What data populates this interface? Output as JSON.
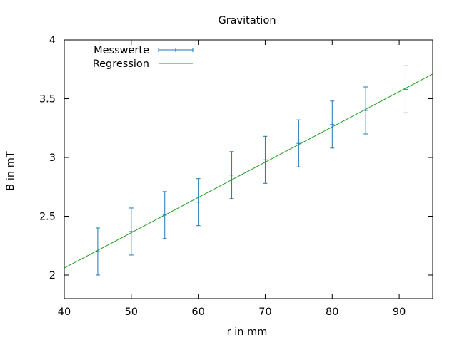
{
  "chart_data": {
    "type": "scatter",
    "title": "Gravitation",
    "xlabel": "r in mm",
    "ylabel": "B in mT",
    "xlim": [
      40,
      95
    ],
    "ylim": [
      1.8,
      4.0
    ],
    "x_ticks": [
      40,
      50,
      60,
      70,
      80,
      90
    ],
    "y_ticks": [
      2,
      2.5,
      3,
      3.5,
      4
    ],
    "x_tick_labels": [
      "40",
      "50",
      "60",
      "70",
      "80",
      "90"
    ],
    "y_tick_labels": [
      "2",
      "2.5",
      "3",
      "3.5",
      "4"
    ],
    "grid": false,
    "legend_position": "top-left",
    "series": [
      {
        "name": "Messwerte",
        "kind": "errorbars",
        "color": "#1f77b4",
        "x": [
          45,
          50,
          55,
          60,
          65,
          70,
          75,
          80,
          85,
          91
        ],
        "y": [
          2.2,
          2.37,
          2.51,
          2.62,
          2.85,
          2.98,
          3.12,
          3.28,
          3.4,
          3.58
        ],
        "yerr": [
          0.2,
          0.2,
          0.2,
          0.2,
          0.2,
          0.2,
          0.2,
          0.2,
          0.2,
          0.2
        ]
      },
      {
        "name": "Regression",
        "kind": "line",
        "color": "#1aa01a",
        "x": [
          40,
          95
        ],
        "y": [
          2.06,
          3.71
        ]
      }
    ]
  }
}
